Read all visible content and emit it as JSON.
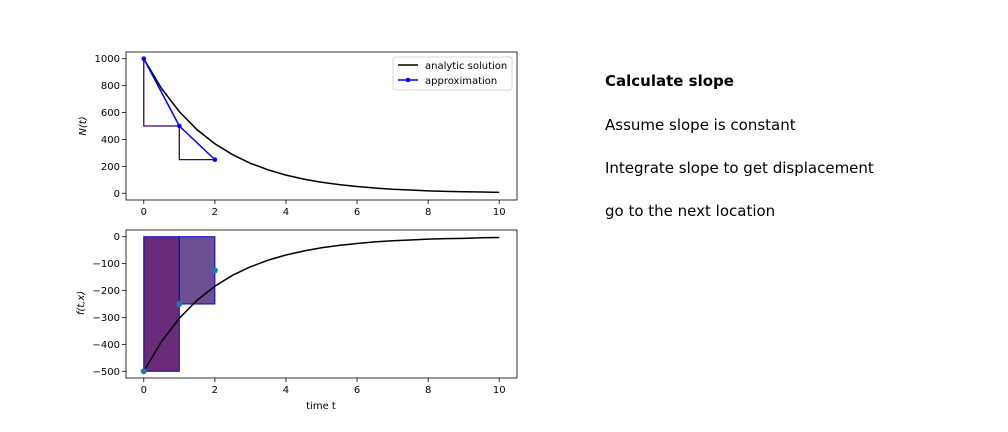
{
  "notes": {
    "heading": "Calculate slope",
    "step1": "Assume slope is constant",
    "step2": "Integrate slope to get displacement",
    "step3": "go to the next location"
  },
  "colors": {
    "analytic": "#000000",
    "approximation": "#0000ff",
    "staircase": "#3d006a",
    "bar_edge": "#0000cd",
    "bar_fill_1": "#6a2c7a",
    "bar_fill_2": "#6e4f94",
    "marker": "#1f77b4"
  },
  "chart_data": [
    {
      "type": "line",
      "title": "",
      "xlabel": "",
      "ylabel": "N(t)",
      "xlim": [
        -0.5,
        10.5
      ],
      "ylim": [
        -50,
        1050
      ],
      "xticks": [
        0,
        2,
        4,
        6,
        8,
        10
      ],
      "yticks": [
        0,
        200,
        400,
        600,
        800,
        1000
      ],
      "legend_position": "top-right",
      "series": [
        {
          "name": "analytic solution",
          "style": "line",
          "x": [
            0,
            0.5,
            1,
            1.5,
            2,
            2.5,
            3,
            3.5,
            4,
            4.5,
            5,
            5.5,
            6,
            6.5,
            7,
            7.5,
            8,
            8.5,
            9,
            9.5,
            10
          ],
          "y": [
            1000,
            779,
            607,
            472,
            368,
            287,
            223,
            174,
            135,
            105,
            82,
            64,
            50,
            39,
            30,
            24,
            18,
            14,
            11,
            9,
            7
          ]
        },
        {
          "name": "approximation",
          "style": "line-marker",
          "x": [
            0,
            1,
            2
          ],
          "y": [
            1000,
            500,
            250
          ]
        },
        {
          "style": "staircase",
          "x": [
            0,
            0,
            1,
            1,
            2
          ],
          "y": [
            1000,
            500,
            500,
            250,
            250
          ]
        }
      ]
    },
    {
      "type": "line",
      "title": "",
      "xlabel": "time t",
      "ylabel": "f(t,x)",
      "xlim": [
        -0.5,
        10.5
      ],
      "ylim": [
        -525,
        25
      ],
      "xticks": [
        0,
        2,
        4,
        6,
        8,
        10
      ],
      "yticks": [
        0,
        -100,
        -200,
        -300,
        -400,
        -500
      ],
      "bars": [
        {
          "x0": 0,
          "x1": 1,
          "value": -500
        },
        {
          "x0": 1,
          "x1": 2,
          "value": -250
        }
      ],
      "points": {
        "x": [
          0,
          1,
          2
        ],
        "y": [
          -500,
          -250,
          -125
        ]
      },
      "series": [
        {
          "style": "line",
          "x": [
            0,
            0.5,
            1,
            1.5,
            2,
            2.5,
            3,
            3.5,
            4,
            4.5,
            5,
            5.5,
            6,
            6.5,
            7,
            7.5,
            8,
            8.5,
            9,
            9.5,
            10
          ],
          "y": [
            -500,
            -389,
            -303,
            -236,
            -184,
            -143,
            -112,
            -87,
            -68,
            -53,
            -41,
            -32,
            -25,
            -19,
            -15,
            -12,
            -9,
            -7,
            -6,
            -4,
            -3
          ]
        }
      ]
    }
  ]
}
